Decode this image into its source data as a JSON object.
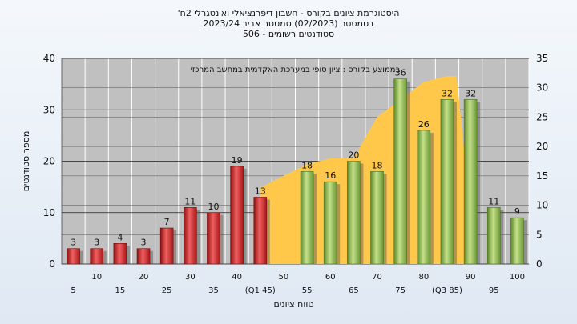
{
  "header": {
    "line1": "'היסטוגרמת ציונים בקורס - חשבון דיפרנציאלי ואינטגרלי 2ח",
    "line2": "בסמסטר  (02/2023)  סמסטר אביב 2023/24",
    "line3": "סטודנטים רשומים - 506"
  },
  "chart_data": {
    "type": "bar",
    "title": "'היסטוגרמת ציונים בקורס - חשבון דיפרנציאלי ואינטגרלי 2ח",
    "subtitle": "בסמסטר  (02/2023)  סמסטר אביב 2023/24 / סטודנטים רשומים - 506",
    "annotation": "בממוצע בקורס : ציון סופי במערכת האקדמית במחשב המרכזי",
    "xlabel": "טווח ציונים",
    "ylabel": "מספר סטודנטים",
    "ylim": [
      0,
      40
    ],
    "y_ticks": [
      0,
      10,
      20,
      30,
      40
    ],
    "y2lim": [
      0,
      35
    ],
    "y2_ticks": [
      0,
      5,
      10,
      15,
      20,
      25,
      30,
      35
    ],
    "grid": true,
    "x_labels_row1": [
      "10",
      "20",
      "30",
      "40",
      "50",
      "60",
      "70",
      "80",
      "90",
      "100"
    ],
    "x_labels_row2": [
      "5",
      "15",
      "25",
      "35",
      "(Q1 45)",
      "55",
      "65",
      "75",
      "(Q3 85)",
      "95"
    ],
    "bars": [
      {
        "x": 5,
        "value": 3,
        "color": "red"
      },
      {
        "x": 10,
        "value": 3,
        "color": "red"
      },
      {
        "x": 15,
        "value": 4,
        "color": "red"
      },
      {
        "x": 20,
        "value": 3,
        "color": "red"
      },
      {
        "x": 25,
        "value": 7,
        "color": "red"
      },
      {
        "x": 30,
        "value": 11,
        "color": "red"
      },
      {
        "x": 35,
        "value": 10,
        "color": "red"
      },
      {
        "x": 40,
        "value": 19,
        "color": "red"
      },
      {
        "x": 45,
        "value": 13,
        "color": "red"
      },
      {
        "x": 55,
        "value": 18,
        "color": "green"
      },
      {
        "x": 60,
        "value": 16,
        "color": "green"
      },
      {
        "x": 65,
        "value": 20,
        "color": "green"
      },
      {
        "x": 70,
        "value": 18,
        "color": "green"
      },
      {
        "x": 75,
        "value": 36,
        "color": "green"
      },
      {
        "x": 80,
        "value": 26,
        "color": "green"
      },
      {
        "x": 85,
        "value": 32,
        "color": "green"
      },
      {
        "x": 90,
        "value": 32,
        "color": "green"
      },
      {
        "x": 95,
        "value": 11,
        "color": "green"
      },
      {
        "x": 100,
        "value": 9,
        "color": "green"
      }
    ],
    "area_secondary_axis": {
      "x": [
        45,
        50,
        55,
        60,
        65,
        70,
        75,
        80,
        85,
        87,
        90
      ],
      "y": [
        13,
        15,
        17,
        18,
        18,
        25,
        28,
        31,
        32,
        32,
        9
      ]
    },
    "colors": {
      "plot_bg": "#c0c0c0",
      "area": "#ffc84a",
      "bar_red": "#d92b2b",
      "bar_green": "#8dbb4a"
    }
  }
}
